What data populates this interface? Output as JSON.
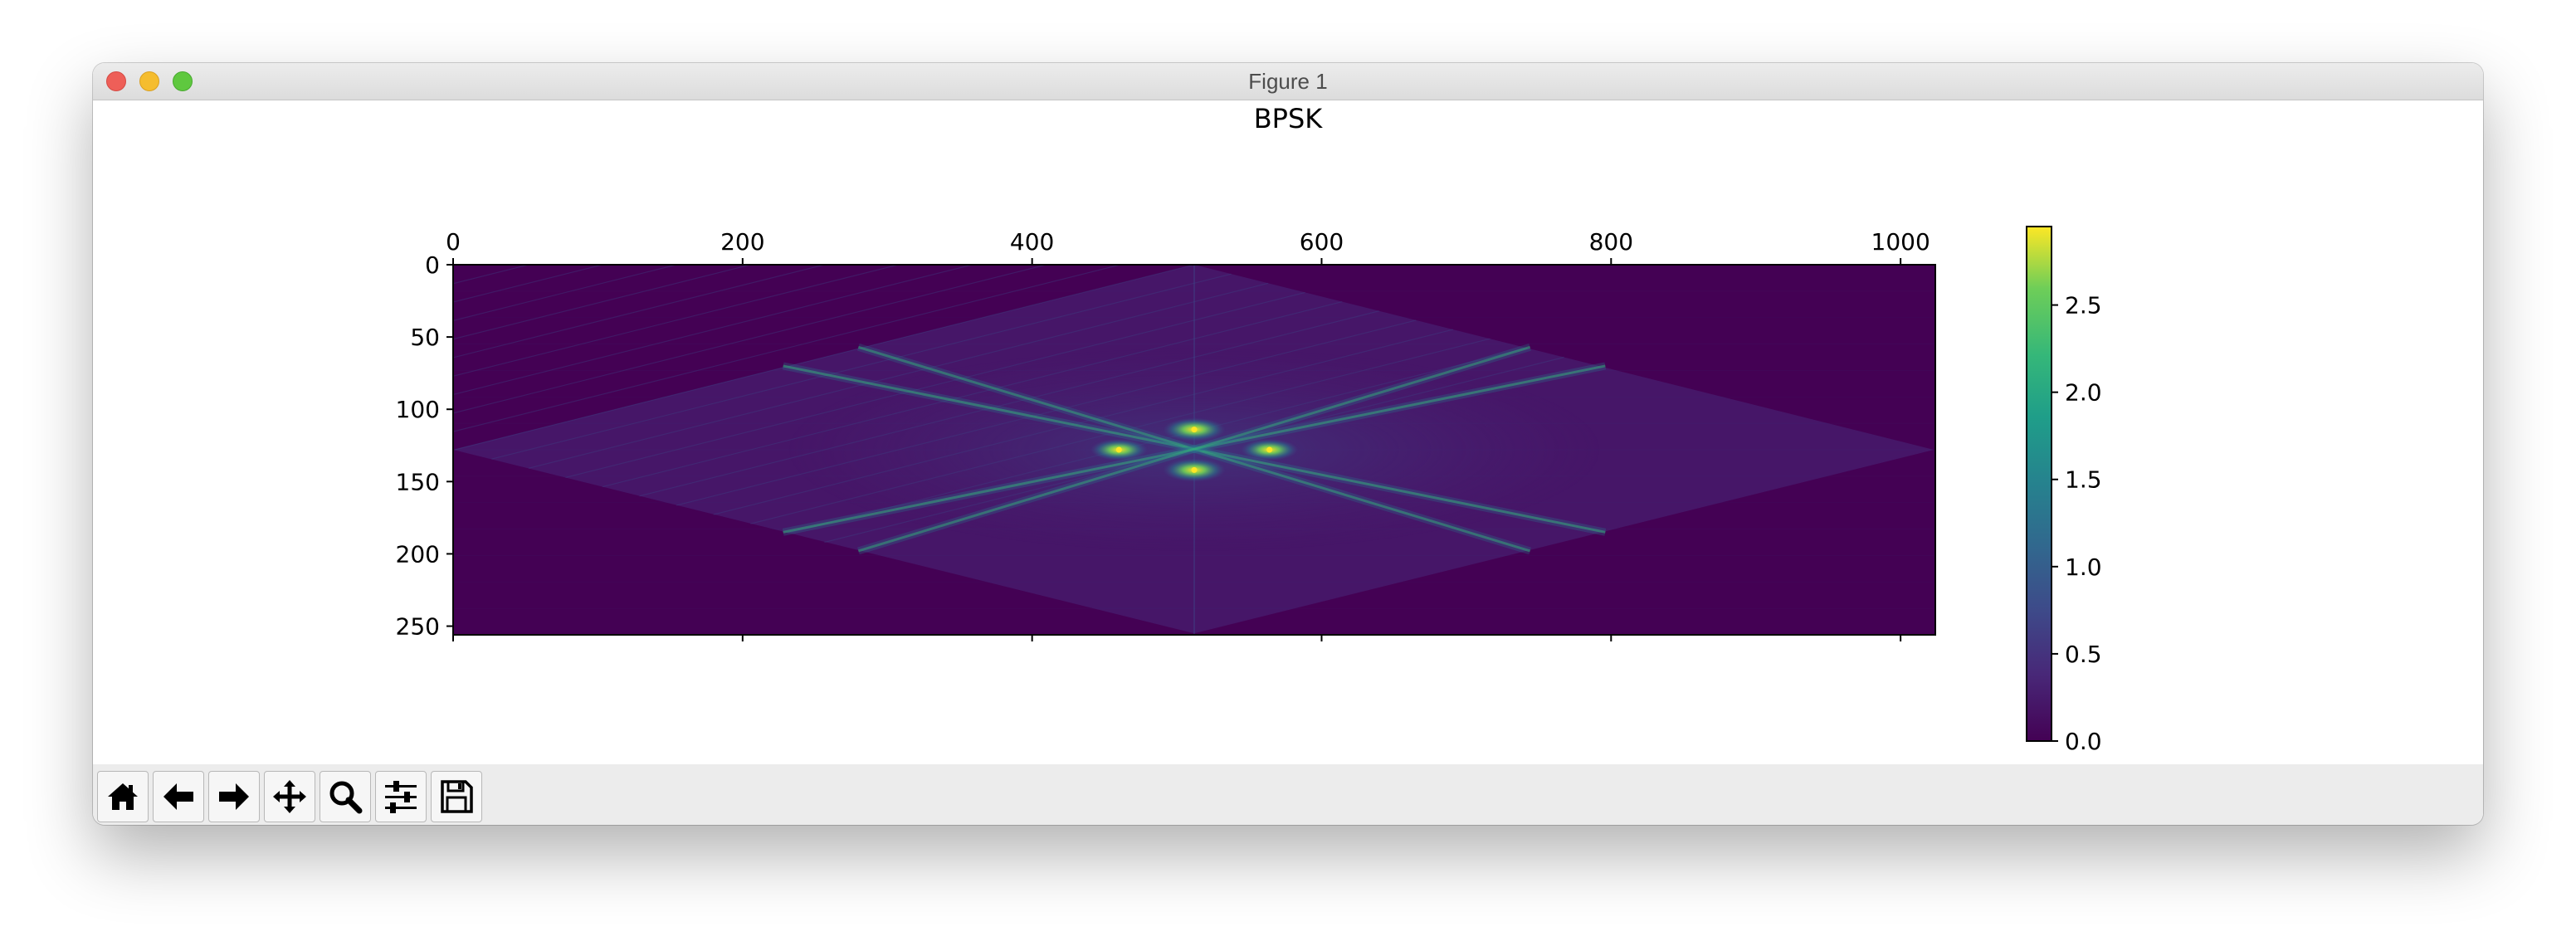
{
  "window": {
    "title": "Figure 1"
  },
  "toolbar": {
    "buttons": [
      {
        "name": "home-button",
        "icon": "home-icon"
      },
      {
        "name": "back-button",
        "icon": "arrow-left-icon"
      },
      {
        "name": "forward-button",
        "icon": "arrow-right-icon"
      },
      {
        "name": "pan-button",
        "icon": "move-icon"
      },
      {
        "name": "zoom-button",
        "icon": "magnifier-icon"
      },
      {
        "name": "configure-subplots-button",
        "icon": "sliders-icon"
      },
      {
        "name": "save-button",
        "icon": "floppy-disk-icon"
      }
    ]
  },
  "chart_data": {
    "type": "heatmap",
    "title": "BPSK",
    "xlabel": "",
    "ylabel": "",
    "x_ticks": [
      "0",
      "200",
      "400",
      "600",
      "800",
      "1000"
    ],
    "y_ticks": [
      "0",
      "50",
      "100",
      "150",
      "200",
      "250"
    ],
    "xlim": [
      0,
      1023
    ],
    "ylim": [
      255,
      0
    ],
    "x_axis_position": "top",
    "colormap": "viridis",
    "colorbar": {
      "min": 0.0,
      "max": 2.95,
      "ticks": [
        "0.0",
        "0.5",
        "1.0",
        "1.5",
        "2.0",
        "2.5"
      ]
    },
    "features": {
      "center": [
        512,
        128
      ],
      "diamond_vertices": [
        [
          512,
          0
        ],
        [
          1023,
          128
        ],
        [
          512,
          255
        ],
        [
          0,
          128
        ]
      ],
      "peaks": [
        {
          "x": 512,
          "y": 114,
          "value": 2.9
        },
        {
          "x": 512,
          "y": 142,
          "value": 2.9
        },
        {
          "x": 460,
          "y": 128,
          "value": 2.5
        },
        {
          "x": 564,
          "y": 128,
          "value": 2.5
        }
      ],
      "bright_lines": [
        {
          "from": [
            228,
            70
          ],
          "to": [
            796,
            185
          ],
          "value": 1.2
        },
        {
          "from": [
            280,
            57
          ],
          "to": [
            744,
            198
          ],
          "value": 1.0
        },
        {
          "from": [
            228,
            185
          ],
          "to": [
            796,
            70
          ],
          "value": 1.2
        },
        {
          "from": [
            280,
            198
          ],
          "to": [
            744,
            57
          ],
          "value": 1.0
        }
      ],
      "background_value": 0.0,
      "diamond_texture_value": 0.25
    },
    "colors": {
      "background": "#440154",
      "low": "#482878",
      "mid": "#26828e",
      "high": "#b5de2b",
      "max": "#fde725"
    }
  }
}
